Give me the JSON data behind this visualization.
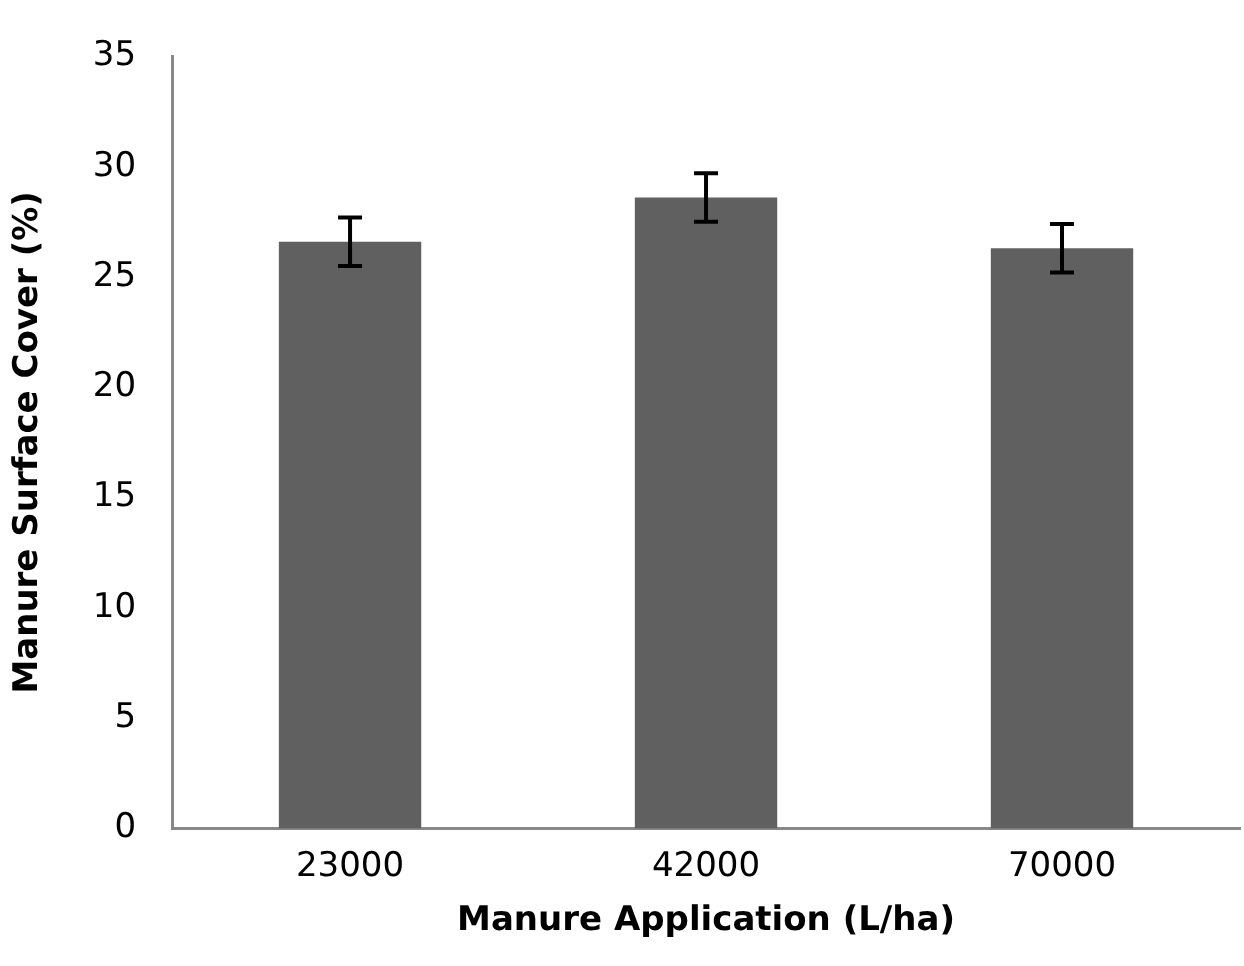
{
  "chart_data": {
    "type": "bar",
    "xlabel": "Manure Application (L/ha)",
    "ylabel": "Manure Surface Cover (%)",
    "categories": [
      "23000",
      "42000",
      "70000"
    ],
    "values": [
      26.6,
      28.6,
      26.3
    ],
    "errors": [
      1.1,
      1.1,
      1.1
    ],
    "color": "#606060",
    "ylim": [
      0,
      35
    ],
    "yticks": [
      0,
      5,
      10,
      15,
      20,
      25,
      30,
      35
    ],
    "grid": false,
    "legend": false
  }
}
